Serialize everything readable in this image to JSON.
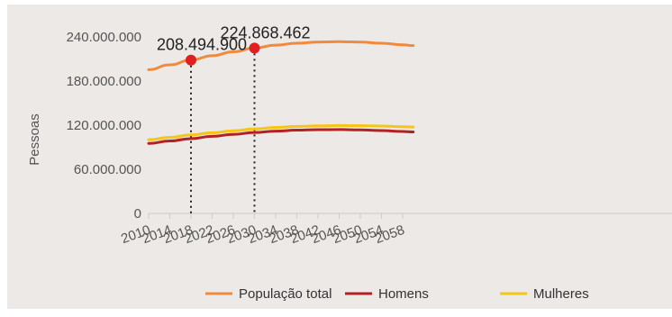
{
  "chart_data": {
    "type": "line",
    "ylabel": "Pessoas",
    "ylim": [
      0,
      240000000
    ],
    "y_ticks": [
      0,
      60000000,
      120000000,
      180000000,
      240000000
    ],
    "y_tick_labels": [
      "0",
      "60.000.000",
      "120.000.000",
      "180.000.000",
      "240.000.000"
    ],
    "x_ticks": [
      "2010",
      "2014",
      "2018",
      "2022",
      "2026",
      "2030",
      "2034",
      "2038",
      "2042",
      "2046",
      "2050",
      "2054",
      "2058"
    ],
    "x": [
      2010,
      2014,
      2018,
      2022,
      2026,
      2030,
      2034,
      2038,
      2042,
      2046,
      2050,
      2054,
      2058,
      2060
    ],
    "series": [
      {
        "name": "População total",
        "color": "#f08a3c",
        "values": [
          195500000,
          202000000,
          208494900,
          214500000,
          219800000,
          224868462,
          228800000,
          231500000,
          233000000,
          233500000,
          233000000,
          231500000,
          229300000,
          228200000
        ]
      },
      {
        "name": "Homens",
        "color": "#b22222",
        "values": [
          95200000,
          98500000,
          101700000,
          104800000,
          107500000,
          110000000,
          111900000,
          113200000,
          113900000,
          114000000,
          113600000,
          112700000,
          111400000,
          110800000
        ]
      },
      {
        "name": "Mulheres",
        "color": "#f5c518",
        "values": [
          100300000,
          103500000,
          106800000,
          109700000,
          112300000,
          114900000,
          116900000,
          118300000,
          119100000,
          119500000,
          119400000,
          118800000,
          117900000,
          117400000
        ]
      }
    ],
    "annotations": [
      {
        "x": 2018,
        "y": 208494900,
        "label": "208.494.900"
      },
      {
        "x": 2030,
        "y": 224868462,
        "label": "224.868.462"
      }
    ],
    "legend_position": "bottom",
    "grid": false
  }
}
